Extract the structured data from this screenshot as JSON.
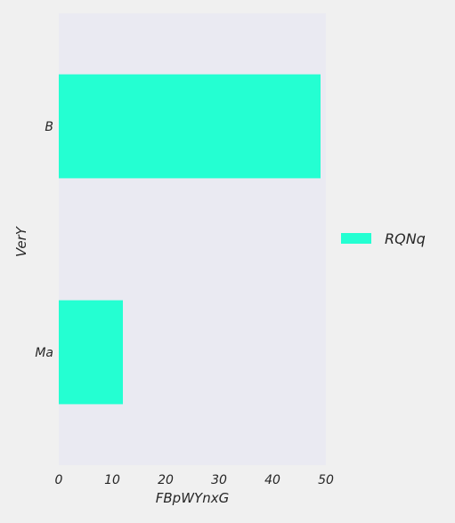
{
  "chart_data": {
    "type": "bar",
    "orientation": "horizontal",
    "title": "",
    "xlabel": "FBpWYnxG",
    "ylabel": "VerY",
    "categories": [
      "B",
      "Ma"
    ],
    "series": [
      {
        "name": "RQNq",
        "values": [
          49,
          12
        ],
        "color": "#24ffd2"
      }
    ],
    "xlim": [
      0,
      50
    ],
    "xticks": [
      0,
      10,
      20,
      30,
      40,
      50
    ],
    "grid": false,
    "legend": {
      "position": "right"
    },
    "colors": {
      "plot_background": "#eaeaf2",
      "page_background": "#f0f0f0",
      "text": "#262626"
    }
  }
}
